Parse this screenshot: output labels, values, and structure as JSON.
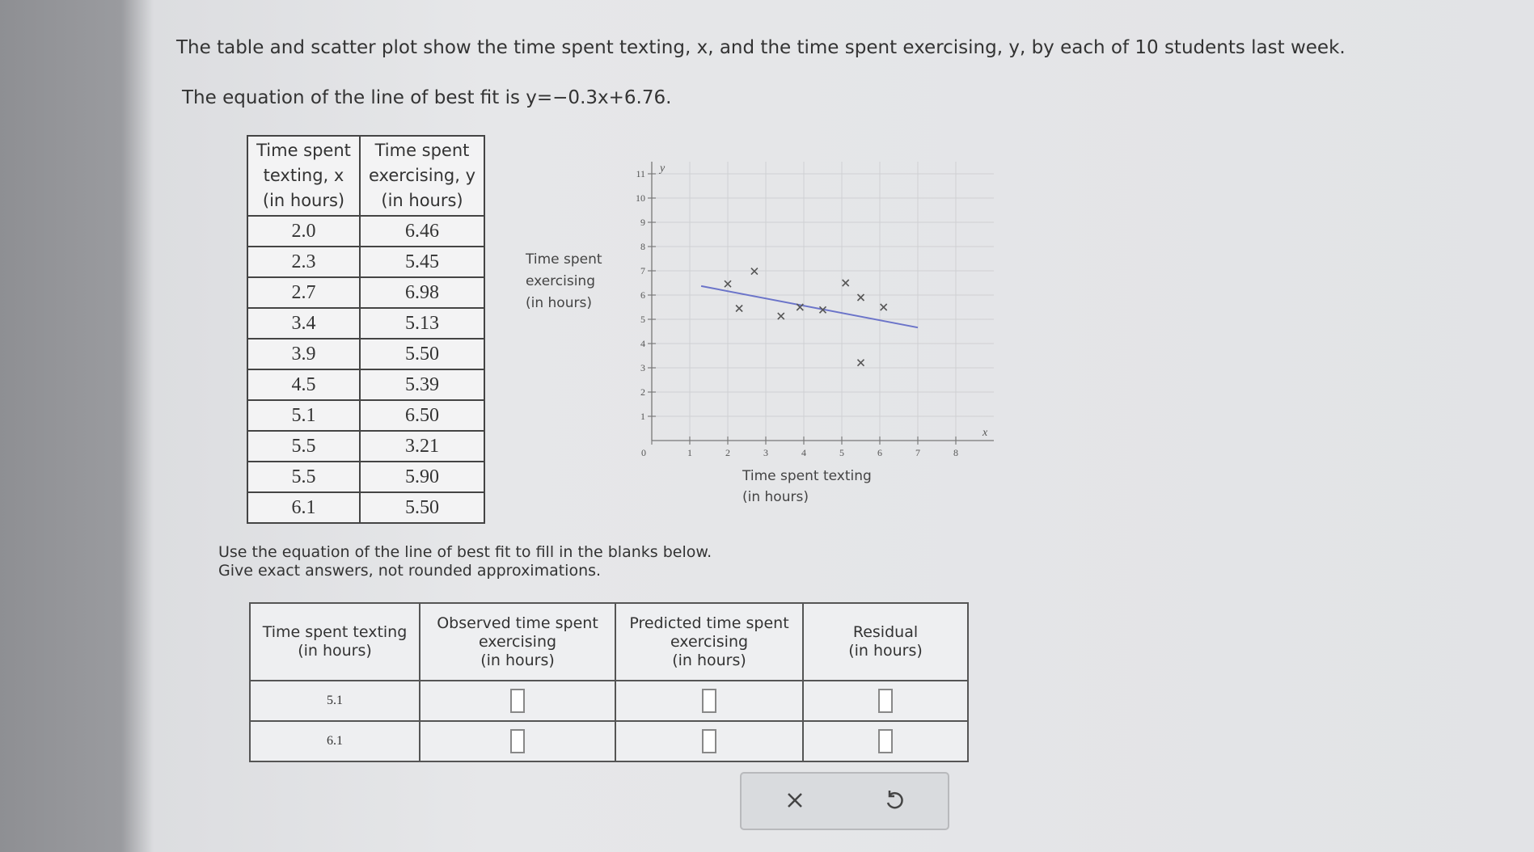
{
  "problem": {
    "intro": "The table and scatter plot show the time spent texting, x, and the time spent exercising, y, by each of 10 students last week.",
    "equation": "The equation of the line of best fit is y=−0.3x+6.76."
  },
  "data_table": {
    "headers": [
      [
        "Time spent",
        "texting, x",
        "(in hours)"
      ],
      [
        "Time spent",
        "exercising, y",
        "(in hours)"
      ]
    ],
    "rows": [
      [
        "2.0",
        "6.46"
      ],
      [
        "2.3",
        "5.45"
      ],
      [
        "2.7",
        "6.98"
      ],
      [
        "3.4",
        "5.13"
      ],
      [
        "3.9",
        "5.50"
      ],
      [
        "4.5",
        "5.39"
      ],
      [
        "5.1",
        "6.50"
      ],
      [
        "5.5",
        "3.21"
      ],
      [
        "5.5",
        "5.90"
      ],
      [
        "6.1",
        "5.50"
      ]
    ]
  },
  "chart_data": {
    "type": "scatter",
    "x": [
      2.0,
      2.3,
      2.7,
      3.4,
      3.9,
      4.5,
      5.1,
      5.5,
      5.5,
      6.1
    ],
    "values": [
      6.46,
      5.45,
      6.98,
      5.13,
      5.5,
      5.39,
      6.5,
      3.21,
      5.9,
      5.5
    ],
    "color": "#555555",
    "x_label": [
      "Time spent texting",
      "(in hours)"
    ],
    "y_label": [
      "Time spent",
      "exercising",
      "(in hours)"
    ],
    "x_var": "x",
    "y_var": "y",
    "xlim": [
      0,
      9
    ],
    "ylim": [
      0,
      11.5
    ],
    "xticks": [
      0,
      1,
      2,
      3,
      4,
      5,
      6,
      7,
      8
    ],
    "yticks": [
      1,
      2,
      3,
      4,
      5,
      6,
      7,
      8,
      9,
      10,
      11
    ],
    "grid": true,
    "fit_line": {
      "x": [
        1.3,
        7.0
      ],
      "values": [
        6.37,
        4.66
      ],
      "color": "#6b74c9"
    }
  },
  "instructions": [
    "Use the equation of the line of best fit to fill in the blanks below.",
    "Give exact answers, not rounded approximations."
  ],
  "answer_table": {
    "headers": [
      [
        "Time spent texting",
        "(in hours)"
      ],
      [
        "Observed time spent",
        "exercising",
        "(in hours)"
      ],
      [
        "Predicted time spent",
        "exercising",
        "(in hours)"
      ],
      [
        "Residual",
        "(in hours)"
      ]
    ],
    "rows": [
      [
        "5.1"
      ],
      [
        "6.1"
      ]
    ]
  }
}
